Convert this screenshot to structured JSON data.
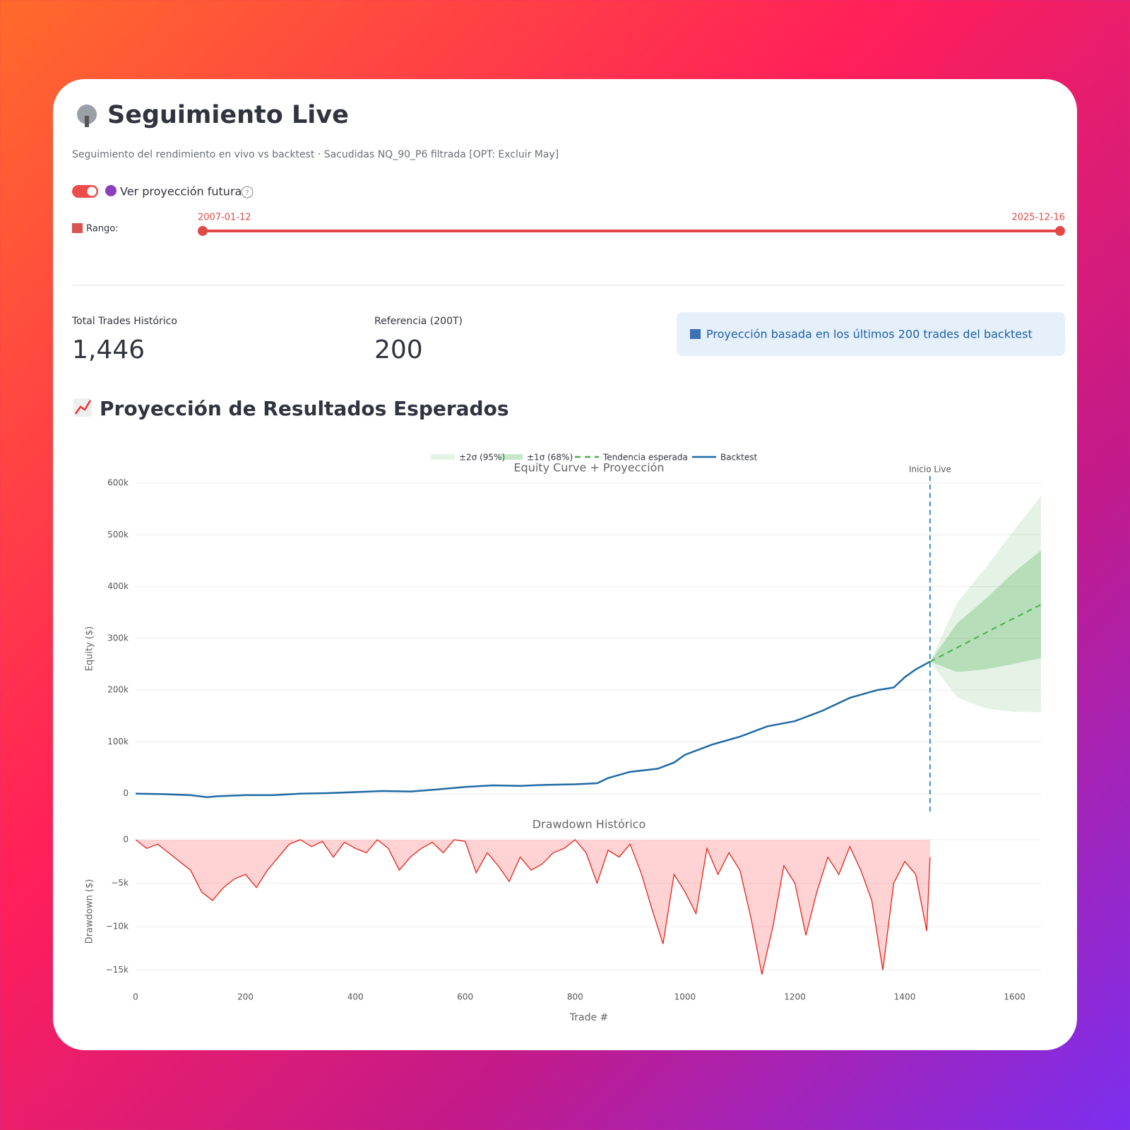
{
  "header": {
    "title": "Seguimiento Live",
    "subtitle": "Seguimiento del rendimiento en vivo vs backtest · Sacudidas NQ_90_P6 filtrada [OPT: Excluir May]"
  },
  "toggle": {
    "label": "Ver proyección futura"
  },
  "slider": {
    "label": "Rango:",
    "start": "2007-01-12",
    "end": "2025-12-16"
  },
  "metrics": [
    {
      "label": "Total Trades Histórico",
      "value": "1,446"
    },
    {
      "label": "Referencia (200T)",
      "value": "200"
    }
  ],
  "info": "Proyección basada en los últimos 200 trades del backtest",
  "section_title": "Proyección de Resultados Esperados",
  "chart_data": [
    {
      "type": "line",
      "title": "Equity Curve + Proyección",
      "y_label": "Equity ($)",
      "xlim": [
        0,
        1648
      ],
      "ylim": [
        -40000,
        600000
      ],
      "yticks": [
        0,
        {
          "value": 100000,
          "label": "100k"
        },
        {
          "value": 200000,
          "label": "200k"
        },
        {
          "value": 300000,
          "label": "300k"
        },
        {
          "value": 400000,
          "label": "400k"
        },
        {
          "value": 500000,
          "label": "500k"
        },
        {
          "value": 600000,
          "label": "600k"
        }
      ],
      "grid": true,
      "annotation": {
        "text": "Inicio Live",
        "x": 1446,
        "color": "#3a8fc4"
      },
      "series": [
        {
          "name": "±2σ (95%)",
          "kind": "band",
          "color": "rgba(76,175,80,0.15)",
          "x": [
            1446,
            1496,
            1546,
            1596,
            1648
          ],
          "upper": [
            255000,
            370000,
            435000,
            505000,
            575000
          ],
          "lower": [
            255000,
            185000,
            165000,
            158000,
            157000
          ]
        },
        {
          "name": "±1σ (68%)",
          "kind": "band",
          "color": "rgba(76,175,80,0.3)",
          "x": [
            1446,
            1496,
            1546,
            1596,
            1648
          ],
          "upper": [
            255000,
            330000,
            375000,
            425000,
            470000
          ],
          "lower": [
            255000,
            235000,
            240000,
            250000,
            262000
          ]
        },
        {
          "name": "Tendencia esperada",
          "kind": "dash",
          "color": "#4caf50",
          "x": [
            1446,
            1496,
            1546,
            1596,
            1648
          ],
          "values": [
            255000,
            282500,
            310000,
            337500,
            365000
          ]
        },
        {
          "name": "Backtest",
          "kind": "line",
          "color": "#1f6aa5",
          "x": [
            0,
            50,
            100,
            130,
            150,
            200,
            250,
            300,
            350,
            400,
            450,
            500,
            550,
            600,
            650,
            700,
            750,
            800,
            840,
            860,
            900,
            950,
            980,
            1000,
            1050,
            1100,
            1150,
            1200,
            1250,
            1300,
            1350,
            1380,
            1400,
            1420,
            1446
          ],
          "values": [
            0,
            -1000,
            -3000,
            -7000,
            -5000,
            -3000,
            -3000,
            0,
            1000,
            3000,
            5000,
            4000,
            8000,
            13000,
            16000,
            15000,
            17000,
            18000,
            20000,
            30000,
            42000,
            48000,
            60000,
            75000,
            95000,
            110000,
            130000,
            140000,
            160000,
            185000,
            200000,
            205000,
            225000,
            240000,
            255000
          ]
        }
      ]
    },
    {
      "type": "area",
      "title": "Drawdown Histórico",
      "y_label": "Drawdown ($)",
      "x_label": "Trade #",
      "xlim": [
        0,
        1648
      ],
      "ylim": [
        -16500,
        0
      ],
      "yticks": [
        {
          "value": -15000,
          "label": "−15k"
        },
        {
          "value": -10000,
          "label": "−10k"
        },
        {
          "value": -5000,
          "label": "−5k"
        },
        0
      ],
      "xticks": [
        0,
        200,
        400,
        600,
        800,
        1000,
        1200,
        1400,
        1600
      ],
      "grid": true,
      "color": "#e3241b",
      "fill": "rgba(255,80,80,0.25)",
      "x": [
        0,
        20,
        40,
        60,
        80,
        100,
        120,
        140,
        160,
        180,
        200,
        220,
        240,
        260,
        280,
        300,
        320,
        340,
        360,
        380,
        400,
        420,
        440,
        460,
        480,
        500,
        520,
        540,
        560,
        580,
        600,
        620,
        640,
        660,
        680,
        700,
        720,
        740,
        760,
        780,
        800,
        820,
        840,
        860,
        880,
        900,
        920,
        940,
        960,
        980,
        1000,
        1020,
        1040,
        1060,
        1080,
        1100,
        1120,
        1140,
        1160,
        1180,
        1200,
        1220,
        1240,
        1260,
        1280,
        1300,
        1320,
        1340,
        1360,
        1380,
        1400,
        1420,
        1440,
        1446
      ],
      "values": [
        0,
        -1000,
        -500,
        -1500,
        -2500,
        -3500,
        -6000,
        -7000,
        -5500,
        -4500,
        -4000,
        -5500,
        -3500,
        -2000,
        -500,
        0,
        -800,
        -200,
        -2000,
        -300,
        -1000,
        -1500,
        0,
        -1000,
        -3500,
        -2000,
        -1000,
        -300,
        -1500,
        0,
        -200,
        -3800,
        -1500,
        -3000,
        -4800,
        -2000,
        -3500,
        -2800,
        -1500,
        -1000,
        0,
        -1500,
        -5000,
        -1200,
        -2000,
        -500,
        -3800,
        -8000,
        -12000,
        -4000,
        -6000,
        -8500,
        -1000,
        -4000,
        -1500,
        -3500,
        -9000,
        -15500,
        -10000,
        -3000,
        -5000,
        -11000,
        -6000,
        -2000,
        -4000,
        -800,
        -3500,
        -7000,
        -15000,
        -5000,
        -2500,
        -4000,
        -10500,
        -2000
      ]
    }
  ]
}
